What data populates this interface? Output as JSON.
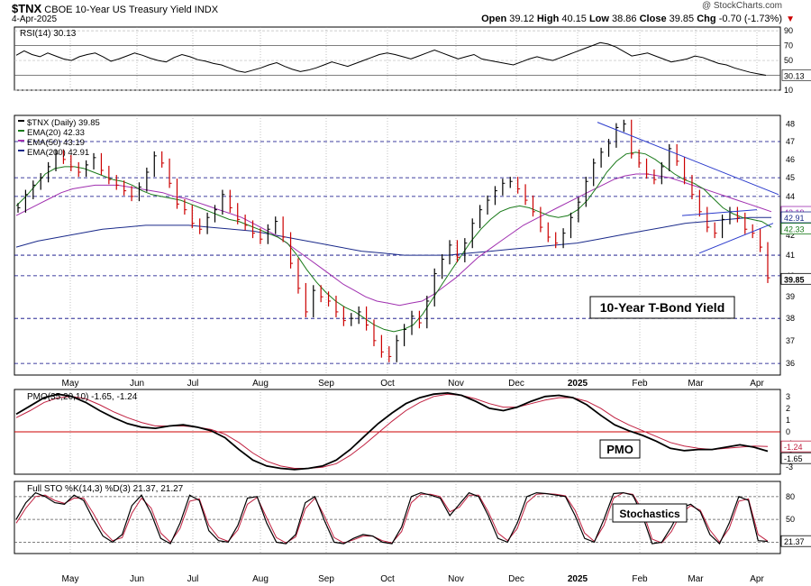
{
  "header": {
    "symbol": "$TNX",
    "name": "CBOE 10-Year US Treasury Yield INDX",
    "date": "4-Apr-2025",
    "copyright": "@ StockCharts.com",
    "open_label": "Open",
    "open": "39.12",
    "high_label": "High",
    "high": "40.15",
    "low_label": "Low",
    "low": "38.86",
    "close_label": "Close",
    "close": "39.85",
    "chg_label": "Chg",
    "chg": "-0.70 (-1.73%)"
  },
  "colors": {
    "price_up": "#000000",
    "price_down": "#cc0000",
    "ema20": "#1a7a1a",
    "ema50": "#a030b0",
    "ema200": "#1a2a8a",
    "trend": "#2a3acc",
    "grid_dash": "#000080",
    "rsi": "#000000",
    "pmo": "#000000",
    "pmo_signal": "#c02040",
    "zero_line": "#cc0000"
  },
  "chart_data": [
    {
      "panel": "rsi",
      "type": "line",
      "legend": "RSI(14) 30.13",
      "ylim": [
        10,
        95
      ],
      "yticks": [
        90,
        70,
        50,
        30,
        10
      ],
      "last_value_label": "30.13",
      "series": [
        {
          "name": "RSI(14)",
          "values": [
            57,
            63,
            58,
            55,
            60,
            56,
            52,
            50,
            55,
            58,
            60,
            55,
            49,
            52,
            56,
            60,
            57,
            53,
            50,
            48,
            54,
            58,
            55,
            51,
            49,
            46,
            44,
            40,
            36,
            34,
            37,
            40,
            44,
            47,
            42,
            38,
            35,
            37,
            40,
            44,
            48,
            45,
            42,
            46,
            50,
            54,
            58,
            60,
            58,
            55,
            52,
            56,
            60,
            64,
            60,
            56,
            52,
            55,
            58,
            52,
            50,
            48,
            46,
            44,
            48,
            52,
            55,
            52,
            50,
            54,
            58,
            62,
            66,
            70,
            74,
            72,
            68,
            62,
            56,
            58,
            60,
            56,
            52,
            48,
            50,
            52,
            56,
            54,
            50,
            46,
            44,
            40,
            37,
            34,
            32,
            30
          ]
        }
      ]
    },
    {
      "panel": "price",
      "type": "line",
      "title": "10-Year T-Bond Yield",
      "ylim": [
        35.5,
        48.5
      ],
      "yticks": [
        48,
        47,
        46,
        45,
        44,
        43,
        42,
        41,
        40,
        39,
        38,
        37,
        36
      ],
      "dashed_levels": [
        47,
        45,
        44,
        41,
        40,
        38,
        36
      ],
      "legend": [
        "$TNX (Daily) 39.85",
        "EMA(20) 42.33",
        "EMA(50) 43.19",
        "EMA(200) 42.91"
      ],
      "right_labels": [
        "43.19",
        "42.91",
        "42.33",
        "39.85"
      ],
      "x_labels": [
        "May",
        "Jun",
        "Jul",
        "Aug",
        "Sep",
        "Oct",
        "Nov",
        "Dec",
        "2025",
        "Feb",
        "Mar",
        "Apr"
      ],
      "series": [
        {
          "name": "$TNX (Daily)",
          "values": [
            43.4,
            44.1,
            44.6,
            45.0,
            45.6,
            46.3,
            46.0,
            45.6,
            45.3,
            45.7,
            46.1,
            45.4,
            44.9,
            44.6,
            44.3,
            44.0,
            44.5,
            45.3,
            46.2,
            45.8,
            44.7,
            43.6,
            43.3,
            42.6,
            42.3,
            42.9,
            43.3,
            44.1,
            43.4,
            42.8,
            42.5,
            42.1,
            41.8,
            42.3,
            42.7,
            41.9,
            40.6,
            39.4,
            38.3,
            39.3,
            39.0,
            38.8,
            38.3,
            37.9,
            38.0,
            38.3,
            37.7,
            37.0,
            36.5,
            36.3,
            37.0,
            37.5,
            38.1,
            37.8,
            38.8,
            40.1,
            40.8,
            41.5,
            40.9,
            41.6,
            42.6,
            43.3,
            43.8,
            44.3,
            44.7,
            44.8,
            44.4,
            43.8,
            43.2,
            42.4,
            41.9,
            41.6,
            42.1,
            42.9,
            43.7,
            44.8,
            45.8,
            46.4,
            46.9,
            47.8,
            48.0,
            46.3,
            45.8,
            45.2,
            44.9,
            45.6,
            46.6,
            45.9,
            44.9,
            44.1,
            43.2,
            42.4,
            42.1,
            42.8,
            43.2,
            42.9,
            42.3,
            42.1,
            41.4,
            39.9
          ]
        },
        {
          "name": "EMA(20)",
          "values": [
            43.5,
            44.0,
            44.6,
            45.2,
            45.5,
            45.6,
            45.6,
            45.5,
            45.3,
            45.1,
            44.9,
            44.8,
            44.6,
            44.3,
            44.1,
            44.0,
            43.9,
            43.8,
            43.6,
            43.4,
            43.2,
            43.0,
            42.8,
            42.7,
            42.5,
            42.3,
            42.1,
            41.9,
            41.6,
            41.0,
            40.3,
            39.7,
            39.2,
            38.8,
            38.5,
            38.3,
            38.0,
            37.7,
            37.5,
            37.4,
            37.5,
            37.7,
            38.2,
            38.9,
            39.6,
            40.3,
            41.0,
            41.7,
            42.3,
            42.8,
            43.2,
            43.4,
            43.5,
            43.4,
            43.2,
            43.0,
            42.9,
            43.0,
            43.3,
            43.8,
            44.5,
            45.3,
            45.9,
            46.3,
            46.4,
            46.3,
            46.0,
            45.6,
            45.2,
            44.9,
            44.7,
            44.4,
            43.9,
            43.4,
            43.1,
            42.9,
            42.8,
            42.7,
            42.4
          ]
        },
        {
          "name": "EMA(50)",
          "values": [
            43.0,
            43.3,
            43.6,
            43.9,
            44.2,
            44.4,
            44.5,
            44.6,
            44.6,
            44.6,
            44.5,
            44.4,
            44.3,
            44.2,
            44.0,
            43.9,
            43.7,
            43.5,
            43.3,
            43.1,
            42.9,
            42.6,
            42.3,
            42.0,
            41.6,
            41.2,
            40.8,
            40.4,
            40.0,
            39.6,
            39.3,
            39.0,
            38.8,
            38.7,
            38.6,
            38.7,
            38.8,
            39.1,
            39.5,
            39.9,
            40.4,
            40.9,
            41.3,
            41.7,
            42.1,
            42.5,
            42.8,
            43.1,
            43.4,
            43.7,
            44.0,
            44.3,
            44.6,
            44.9,
            45.1,
            45.2,
            45.2,
            45.1,
            45.0,
            44.8,
            44.6,
            44.4,
            44.2,
            44.0,
            43.8,
            43.6,
            43.4,
            43.2
          ]
        },
        {
          "name": "EMA(200)",
          "values": [
            41.4,
            41.7,
            41.9,
            42.1,
            42.3,
            42.4,
            42.5,
            42.5,
            42.5,
            42.4,
            42.3,
            42.2,
            42.0,
            41.8,
            41.6,
            41.4,
            41.2,
            41.1,
            41.0,
            41.0,
            41.0,
            41.1,
            41.2,
            41.3,
            41.4,
            41.5,
            41.6,
            41.8,
            42.0,
            42.2,
            42.4,
            42.6,
            42.7,
            42.8,
            42.9,
            42.9
          ]
        }
      ]
    },
    {
      "panel": "pmo",
      "type": "line",
      "title": "PMO",
      "legend": "PMO(35,20,10) -1.65, -1.24",
      "ylim": [
        -3.6,
        3.6
      ],
      "yticks": [
        3,
        2,
        1,
        0,
        -1,
        -2,
        -3
      ],
      "right_labels": [
        "-1.24",
        "-1.65"
      ],
      "series": [
        {
          "name": "PMO",
          "values": [
            1.5,
            2.2,
            2.9,
            3.2,
            3.0,
            2.5,
            1.8,
            1.2,
            0.7,
            0.4,
            0.3,
            0.5,
            0.6,
            0.4,
            0.1,
            -0.5,
            -1.5,
            -2.4,
            -2.9,
            -3.1,
            -3.2,
            -3.1,
            -2.9,
            -2.4,
            -1.5,
            -0.4,
            0.7,
            1.6,
            2.4,
            2.9,
            3.2,
            3.3,
            3.1,
            2.6,
            2.0,
            1.8,
            2.1,
            2.6,
            3.0,
            3.1,
            2.9,
            2.3,
            1.4,
            0.6,
            0.1,
            -0.3,
            -0.8,
            -1.4,
            -1.6,
            -1.5,
            -1.5,
            -1.3,
            -1.1,
            -1.3,
            -1.65
          ]
        },
        {
          "name": "PMO Signal",
          "values": [
            1.2,
            1.8,
            2.5,
            2.9,
            3.0,
            2.8,
            2.3,
            1.7,
            1.2,
            0.8,
            0.5,
            0.5,
            0.5,
            0.4,
            0.2,
            -0.2,
            -0.9,
            -1.8,
            -2.5,
            -2.9,
            -3.1,
            -3.1,
            -3.0,
            -2.7,
            -2.0,
            -1.1,
            -0.1,
            0.9,
            1.8,
            2.5,
            3.0,
            3.2,
            3.1,
            2.8,
            2.4,
            2.1,
            2.1,
            2.4,
            2.7,
            2.9,
            2.9,
            2.6,
            2.0,
            1.2,
            0.6,
            0.1,
            -0.4,
            -0.9,
            -1.2,
            -1.4,
            -1.5,
            -1.4,
            -1.3,
            -1.2,
            -1.24
          ]
        }
      ]
    },
    {
      "panel": "stochastics",
      "type": "line",
      "title": "Stochastics",
      "legend": "Full STO %K(14,3) %D(3) 21.37, 21.27",
      "ylim": [
        5,
        100
      ],
      "yticks": [
        80,
        50,
        20
      ],
      "right_labels": [
        "21.37"
      ],
      "series": [
        {
          "name": "%K",
          "values": [
            50,
            72,
            85,
            80,
            72,
            70,
            82,
            75,
            50,
            28,
            20,
            30,
            68,
            82,
            58,
            25,
            18,
            45,
            82,
            75,
            35,
            22,
            20,
            42,
            78,
            80,
            45,
            20,
            18,
            30,
            72,
            80,
            48,
            20,
            18,
            25,
            30,
            28,
            20,
            18,
            40,
            80,
            85,
            82,
            78,
            55,
            70,
            85,
            80,
            55,
            25,
            20,
            45,
            80,
            85,
            84,
            82,
            80,
            55,
            25,
            20,
            50,
            84,
            85,
            82,
            55,
            18,
            20,
            40,
            65,
            70,
            60,
            30,
            18,
            45,
            80,
            75,
            22,
            21
          ]
        },
        {
          "name": "%D",
          "values": [
            45,
            65,
            80,
            82,
            75,
            71,
            78,
            78,
            58,
            35,
            22,
            26,
            58,
            78,
            65,
            32,
            20,
            38,
            74,
            77,
            42,
            26,
            21,
            36,
            70,
            79,
            52,
            26,
            19,
            27,
            64,
            78,
            54,
            26,
            19,
            23,
            28,
            28,
            22,
            19,
            34,
            72,
            83,
            83,
            80,
            60,
            66,
            82,
            82,
            60,
            32,
            22,
            38,
            72,
            83,
            84,
            83,
            81,
            62,
            32,
            21,
            42,
            78,
            85,
            83,
            62,
            24,
            19,
            34,
            58,
            68,
            62,
            36,
            20,
            38,
            74,
            77,
            30,
            21.27
          ]
        }
      ]
    }
  ]
}
